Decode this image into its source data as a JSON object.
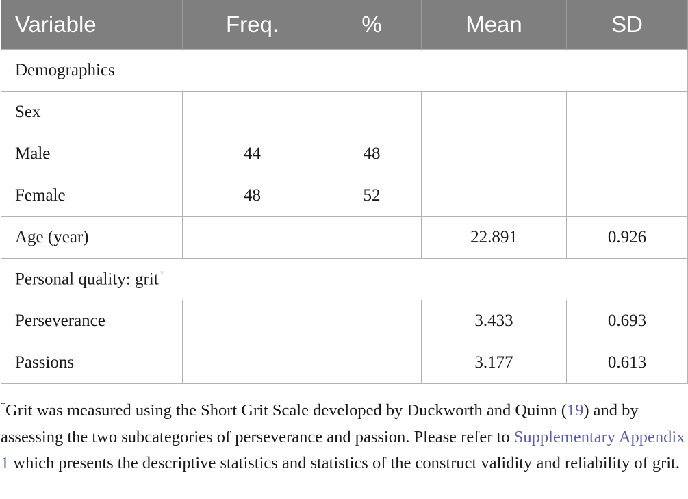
{
  "table": {
    "headers": [
      "Variable",
      "Freq.",
      "%",
      "Mean",
      "SD"
    ],
    "rows": [
      {
        "section": true,
        "label": "Demographics"
      },
      {
        "label": "Sex",
        "freq": "",
        "pct": "",
        "mean": "",
        "sd": ""
      },
      {
        "label": "Male",
        "freq": "44",
        "pct": "48",
        "mean": "",
        "sd": ""
      },
      {
        "label": "Female",
        "freq": "48",
        "pct": "52",
        "mean": "",
        "sd": ""
      },
      {
        "label": "Age (year)",
        "freq": "",
        "pct": "",
        "mean": "22.891",
        "sd": "0.926"
      },
      {
        "section": true,
        "label": "Personal quality: grit",
        "dagger": "†"
      },
      {
        "label": "Perseverance",
        "freq": "",
        "pct": "",
        "mean": "3.433",
        "sd": "0.693"
      },
      {
        "label": "Passions",
        "freq": "",
        "pct": "",
        "mean": "3.177",
        "sd": "0.613"
      }
    ]
  },
  "footnote": {
    "dagger": "†",
    "part1": "Grit was measured using the Short Grit Scale developed by Duckworth and Quinn (",
    "ref": "19",
    "part2": ") and by assessing the two subcategories of perseverance and passion. Please refer to ",
    "link": "Supplementary Appendix 1",
    "part3": " which presents the descriptive statistics and statistics of the construct validity and reliability of grit."
  },
  "colors": {
    "header_bg": "#7f7f7f",
    "header_text": "#ffffff",
    "link": "#5a5fa8",
    "border": "#b3b3b3"
  }
}
